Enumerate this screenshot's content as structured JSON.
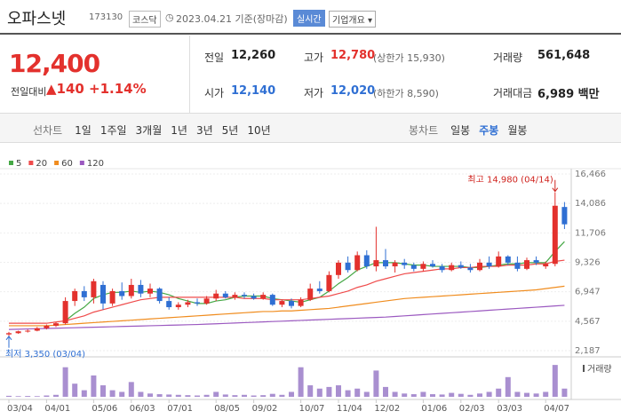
{
  "header": {
    "name": "오파스넷",
    "code": "173130",
    "market": "코스닥",
    "date": "2023.04.21 기준(장마감)",
    "realtime": "실시간",
    "company": "기업개요"
  },
  "price": {
    "current": "12,400",
    "change_label": "전일대비",
    "change": "▲140",
    "percent": "+1.14%"
  },
  "stats": [
    [
      "전일",
      "12,260",
      ""
    ],
    [
      "고가",
      "12,780",
      "(상한가 15,930)"
    ],
    [
      "거래량",
      "561,648",
      ""
    ],
    [
      "시가",
      "12,140",
      ""
    ],
    [
      "저가",
      "12,020",
      "(하한가 8,590)"
    ],
    [
      "거래대금",
      "6,989 백만",
      ""
    ]
  ],
  "line_tabs": {
    "label": "선차트",
    "items": [
      "1일",
      "1주일",
      "3개월",
      "1년",
      "3년",
      "5년",
      "10년"
    ]
  },
  "candle_tabs": {
    "label": "봉차트",
    "items": [
      "일봉",
      "주봉",
      "월봉"
    ],
    "selected": 1
  },
  "chart_data": {
    "type": "candlestick",
    "up_color": "#e3312d",
    "down_color": "#2f6fd3",
    "categories": [
      "03/04",
      null,
      null,
      null,
      "04/01",
      null,
      null,
      null,
      null,
      "05/06",
      null,
      null,
      null,
      "06/03",
      null,
      null,
      null,
      "07/01",
      null,
      null,
      null,
      null,
      "08/05",
      null,
      null,
      null,
      "09/02",
      null,
      null,
      null,
      null,
      "10/07",
      null,
      null,
      null,
      "11/04",
      null,
      null,
      null,
      "12/02",
      null,
      null,
      null,
      null,
      "01/06",
      null,
      null,
      null,
      "02/03",
      null,
      null,
      null,
      "03/03",
      null,
      null,
      null,
      null,
      "04/07",
      null,
      null
    ],
    "open": [
      3500,
      3600,
      3750,
      3800,
      4000,
      4200,
      4400,
      6200,
      7000,
      6500,
      7500,
      6000,
      7000,
      6600,
      7500,
      6800,
      7200,
      6200,
      5700,
      5900,
      6100,
      6000,
      6400,
      6800,
      6500,
      6700,
      6600,
      6400,
      6700,
      5900,
      6200,
      5800,
      6300,
      7200,
      7000,
      8300,
      9300,
      8700,
      9900,
      9000,
      9500,
      9000,
      9300,
      9100,
      8800,
      9200,
      9000,
      8700,
      9100,
      8900,
      8700,
      9300,
      9000,
      9800,
      9300,
      8800,
      9500,
      9000,
      9200,
      13800
    ],
    "high": [
      3700,
      3800,
      3900,
      4100,
      4300,
      4500,
      6500,
      7200,
      7400,
      8000,
      7800,
      7200,
      7700,
      8000,
      7900,
      7600,
      7300,
      6500,
      6100,
      6300,
      6400,
      6600,
      7100,
      7000,
      6900,
      6900,
      6800,
      6900,
      6800,
      6300,
      6400,
      6500,
      7600,
      7800,
      8600,
      9500,
      9800,
      10200,
      10300,
      12200,
      10400,
      9500,
      9600,
      9300,
      9400,
      9500,
      9200,
      9300,
      9400,
      9200,
      9600,
      9800,
      10200,
      9900,
      9800,
      9700,
      9800,
      9400,
      14980,
      14200
    ],
    "low": [
      3350,
      3550,
      3650,
      3750,
      3900,
      4100,
      4300,
      5800,
      6200,
      6000,
      5500,
      5800,
      6300,
      6400,
      6500,
      6500,
      6000,
      5500,
      5500,
      5700,
      5800,
      5900,
      6200,
      6400,
      6300,
      6400,
      6300,
      6300,
      5800,
      5700,
      5600,
      5700,
      6200,
      6800,
      6900,
      8000,
      8500,
      8600,
      8800,
      8600,
      8800,
      8500,
      8800,
      8600,
      8600,
      8900,
      8500,
      8600,
      8800,
      8500,
      8600,
      8800,
      8900,
      9100,
      8600,
      8700,
      9100,
      8800,
      9000,
      12020
    ],
    "close": [
      3600,
      3750,
      3800,
      4000,
      4200,
      4400,
      6200,
      7000,
      6500,
      7800,
      6000,
      7000,
      6600,
      7500,
      6800,
      7200,
      6200,
      5700,
      5900,
      6100,
      6000,
      6400,
      6800,
      6500,
      6700,
      6600,
      6400,
      6700,
      5900,
      6200,
      5800,
      6300,
      7200,
      7000,
      8300,
      9300,
      8700,
      9900,
      9000,
      9500,
      9000,
      9300,
      9100,
      8800,
      9200,
      9000,
      8700,
      9100,
      8900,
      8700,
      9300,
      9000,
      9800,
      9300,
      8800,
      9500,
      9300,
      9200,
      13900,
      12400
    ],
    "series": [
      {
        "name": "5",
        "color": "#45a845",
        "values": [
          null,
          null,
          null,
          null,
          null,
          null,
          4600,
          5200,
          5700,
          6400,
          6700,
          6900,
          6900,
          7000,
          6900,
          7000,
          6900,
          6700,
          6400,
          6200,
          6000,
          6000,
          6200,
          6300,
          6500,
          6600,
          6600,
          6600,
          6400,
          6300,
          6200,
          6100,
          6300,
          6500,
          7000,
          7600,
          8100,
          8700,
          9000,
          9300,
          9300,
          9300,
          9200,
          9100,
          9100,
          9000,
          9000,
          9000,
          9000,
          8900,
          8900,
          9000,
          9100,
          9200,
          9200,
          9300,
          9300,
          9300,
          10200,
          11000
        ]
      },
      {
        "name": "20",
        "color": "#ef4b4b",
        "values": [
          4400,
          4400,
          4400,
          4400,
          4400,
          4500,
          4600,
          4800,
          5000,
          5300,
          5500,
          5700,
          5900,
          6100,
          6300,
          6400,
          6500,
          6500,
          6500,
          6500,
          6500,
          6500,
          6500,
          6500,
          6500,
          6400,
          6400,
          6400,
          6300,
          6300,
          6300,
          6300,
          6400,
          6500,
          6600,
          6800,
          7000,
          7300,
          7500,
          7800,
          8000,
          8200,
          8400,
          8500,
          8600,
          8700,
          8800,
          8800,
          8900,
          8900,
          9000,
          9000,
          9000,
          9100,
          9100,
          9100,
          9200,
          9200,
          9400,
          9500
        ]
      },
      {
        "name": "60",
        "color": "#f08c1e",
        "values": [
          4200,
          4200,
          4200,
          4200,
          4200,
          4250,
          4300,
          4350,
          4400,
          4450,
          4500,
          4550,
          4600,
          4650,
          4700,
          4750,
          4800,
          4850,
          4900,
          4950,
          5000,
          5050,
          5100,
          5150,
          5200,
          5250,
          5300,
          5350,
          5350,
          5400,
          5400,
          5450,
          5500,
          5550,
          5600,
          5700,
          5800,
          5900,
          6000,
          6100,
          6200,
          6300,
          6400,
          6450,
          6500,
          6550,
          6600,
          6650,
          6700,
          6750,
          6800,
          6850,
          6900,
          6950,
          7000,
          7050,
          7100,
          7200,
          7300,
          7400
        ]
      },
      {
        "name": "120",
        "color": "#9b59c0",
        "values": [
          3900,
          3920,
          3940,
          3960,
          3980,
          4000,
          4020,
          4040,
          4060,
          4080,
          4100,
          4120,
          4140,
          4160,
          4180,
          4200,
          4220,
          4240,
          4260,
          4280,
          4300,
          4330,
          4360,
          4390,
          4420,
          4450,
          4480,
          4510,
          4540,
          4570,
          4600,
          4630,
          4660,
          4690,
          4720,
          4750,
          4780,
          4810,
          4840,
          4870,
          4900,
          4950,
          5000,
          5050,
          5100,
          5150,
          5200,
          5250,
          5300,
          5350,
          5400,
          5450,
          5500,
          5550,
          5600,
          5650,
          5700,
          5750,
          5800,
          5850
        ]
      }
    ],
    "ylim": [
      2187,
      16466
    ],
    "yticks": [
      {
        "value": 2187,
        "label": "2,187"
      },
      {
        "value": 4567,
        "label": "4,567"
      },
      {
        "value": 6947,
        "label": "6,947"
      },
      {
        "value": 9326,
        "label": "9,326"
      },
      {
        "value": 11706,
        "label": "11,706"
      },
      {
        "value": 14086,
        "label": "14,086"
      },
      {
        "value": 16466,
        "label": "16,466"
      }
    ],
    "grid": true,
    "max_annotation": "최고 14,980 (04/14)",
    "min_annotation": "최저 3,350 (03/04)",
    "volume_label": "거래량",
    "volume_color": "#a98fd0",
    "volume": [
      300000,
      200000,
      250000,
      200000,
      400000,
      600000,
      9000000,
      4000000,
      2000000,
      6500000,
      3500000,
      2000000,
      1500000,
      4500000,
      1500000,
      1000000,
      800000,
      700000,
      600000,
      500000,
      400000,
      600000,
      1500000,
      700000,
      500000,
      600000,
      400000,
      500000,
      900000,
      600000,
      1500000,
      9000000,
      3500000,
      2500000,
      3000000,
      3500000,
      2000000,
      2500000,
      1500000,
      8000000,
      3000000,
      1500000,
      1000000,
      800000,
      1500000,
      800000,
      700000,
      1200000,
      900000,
      600000,
      1000000,
      1500000,
      2500000,
      6000000,
      1500000,
      1200000,
      1000000,
      1500000,
      9700000,
      2500000
    ],
    "volume_ylim": [
      0,
      10000000
    ]
  }
}
